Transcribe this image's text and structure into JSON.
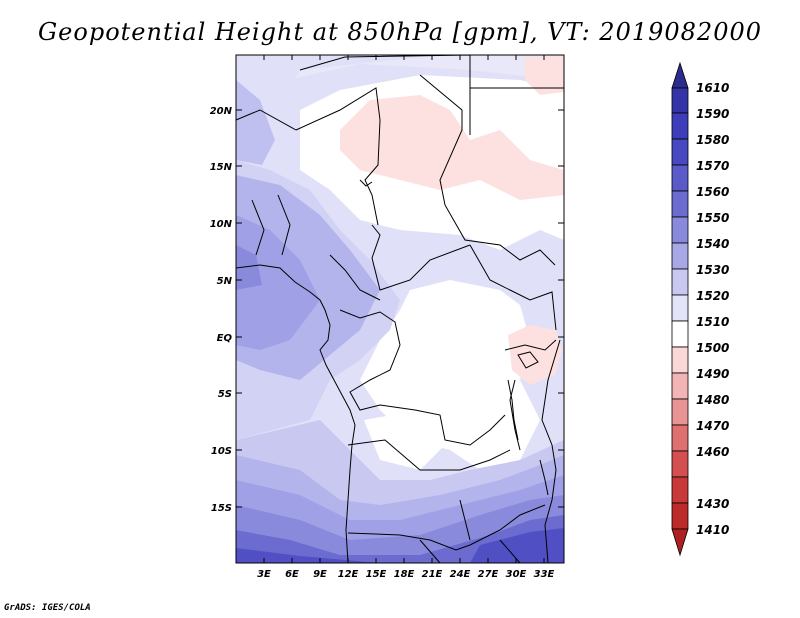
{
  "title": "Geopotential Height at 850hPa [gpm], VT: 2019082000",
  "credit": "GrADS: IGES/COLA",
  "map": {
    "lat_labels": [
      "20N",
      "15N",
      "10N",
      "5N",
      "EQ",
      "5S",
      "10S",
      "15S"
    ],
    "lon_labels": [
      "3E",
      "6E",
      "9E",
      "12E",
      "15E",
      "18E",
      "21E",
      "24E",
      "27E",
      "30E",
      "33E"
    ]
  },
  "colorbar": {
    "labels": [
      "1610",
      "1590",
      "1580",
      "1570",
      "1560",
      "1550",
      "1540",
      "1530",
      "1520",
      "1510",
      "1500",
      "1490",
      "1480",
      "1470",
      "1460",
      "1430",
      "1410"
    ],
    "colors": [
      "#2c2c8e",
      "#3434a8",
      "#3e3eba",
      "#5050c4",
      "#6464cc",
      "#7878d4",
      "#9c9ce0",
      "#bcbcec",
      "#dcdcf6",
      "#ffffff",
      "#fbdada",
      "#f3b8b8",
      "#e89898",
      "#dc7272",
      "#d44c4c",
      "#c83434",
      "#b82020"
    ]
  }
}
